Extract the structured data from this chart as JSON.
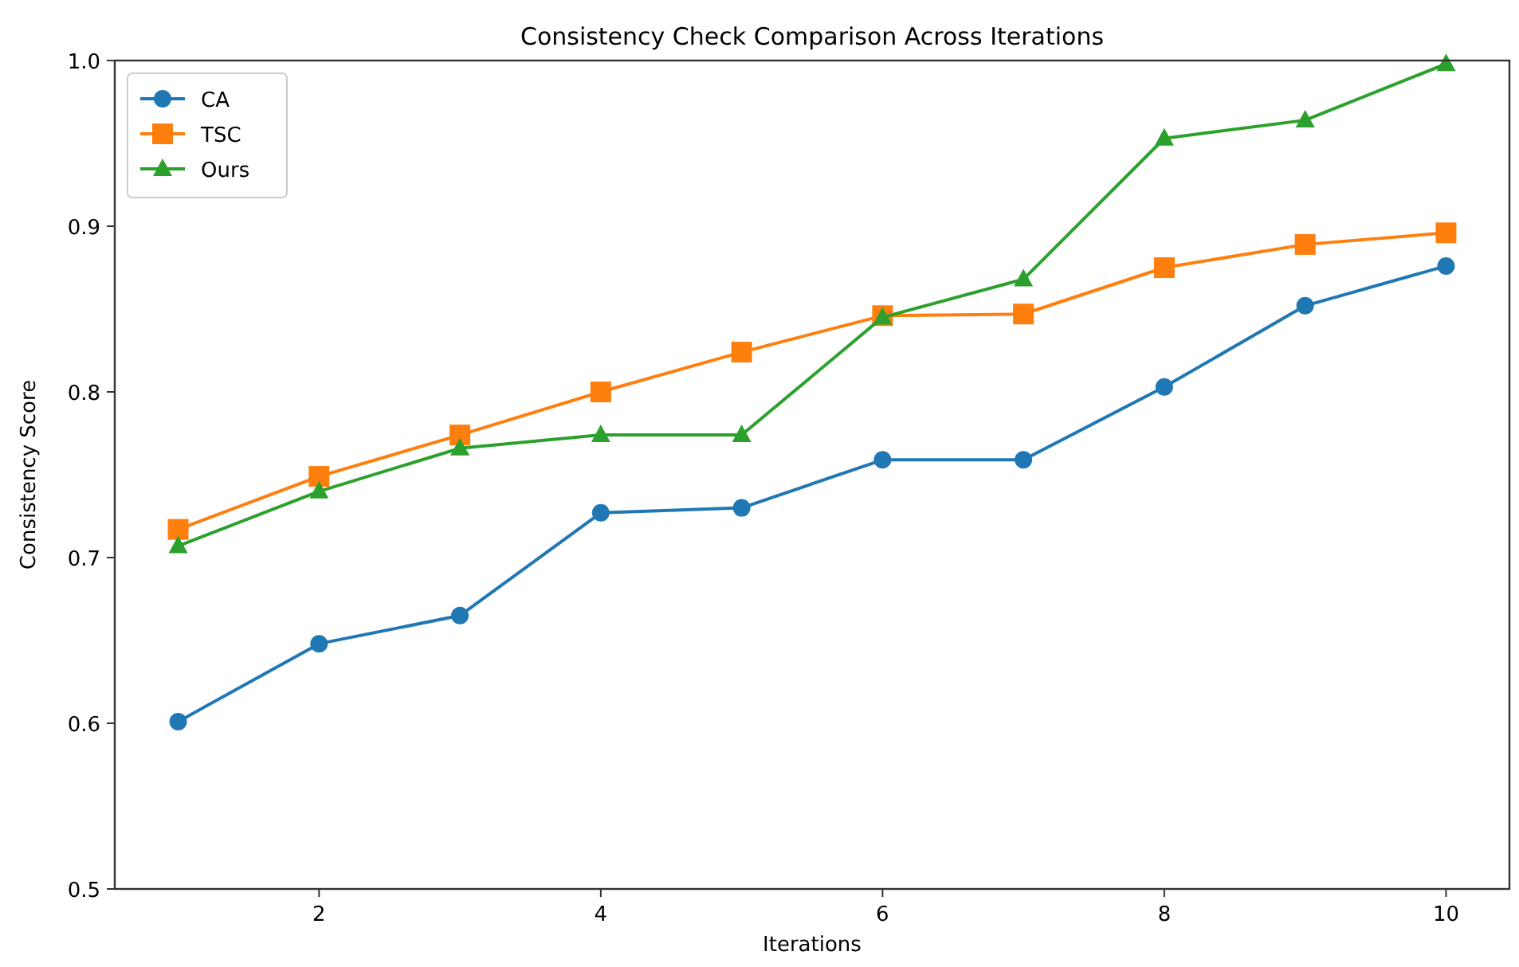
{
  "chart_data": {
    "type": "line",
    "title": "Consistency Check Comparison Across Iterations",
    "xlabel": "Iterations",
    "ylabel": "Consistency Score",
    "x": [
      1,
      2,
      3,
      4,
      5,
      6,
      7,
      8,
      9,
      10
    ],
    "series": [
      {
        "name": "CA",
        "color": "#1f77b4",
        "marker": "circle",
        "values": [
          0.601,
          0.648,
          0.665,
          0.727,
          0.73,
          0.759,
          0.759,
          0.803,
          0.852,
          0.876
        ]
      },
      {
        "name": "TSC",
        "color": "#ff7f0e",
        "marker": "square",
        "values": [
          0.717,
          0.749,
          0.774,
          0.8,
          0.824,
          0.846,
          0.847,
          0.875,
          0.889,
          0.896
        ]
      },
      {
        "name": "Ours",
        "color": "#2ca02c",
        "marker": "triangle",
        "values": [
          0.707,
          0.74,
          0.766,
          0.774,
          0.774,
          0.845,
          0.868,
          0.953,
          0.964,
          0.998
        ]
      }
    ],
    "xlim": [
      0.55,
      10.45
    ],
    "ylim": [
      0.5,
      1.0
    ],
    "xticks": [
      2,
      4,
      6,
      8,
      10
    ],
    "yticks": [
      0.5,
      0.6,
      0.7,
      0.8,
      0.9,
      {
        "value": 1.0,
        "label": "1.0"
      }
    ],
    "grid": false,
    "legend": "top left",
    "line_style": "solid"
  }
}
